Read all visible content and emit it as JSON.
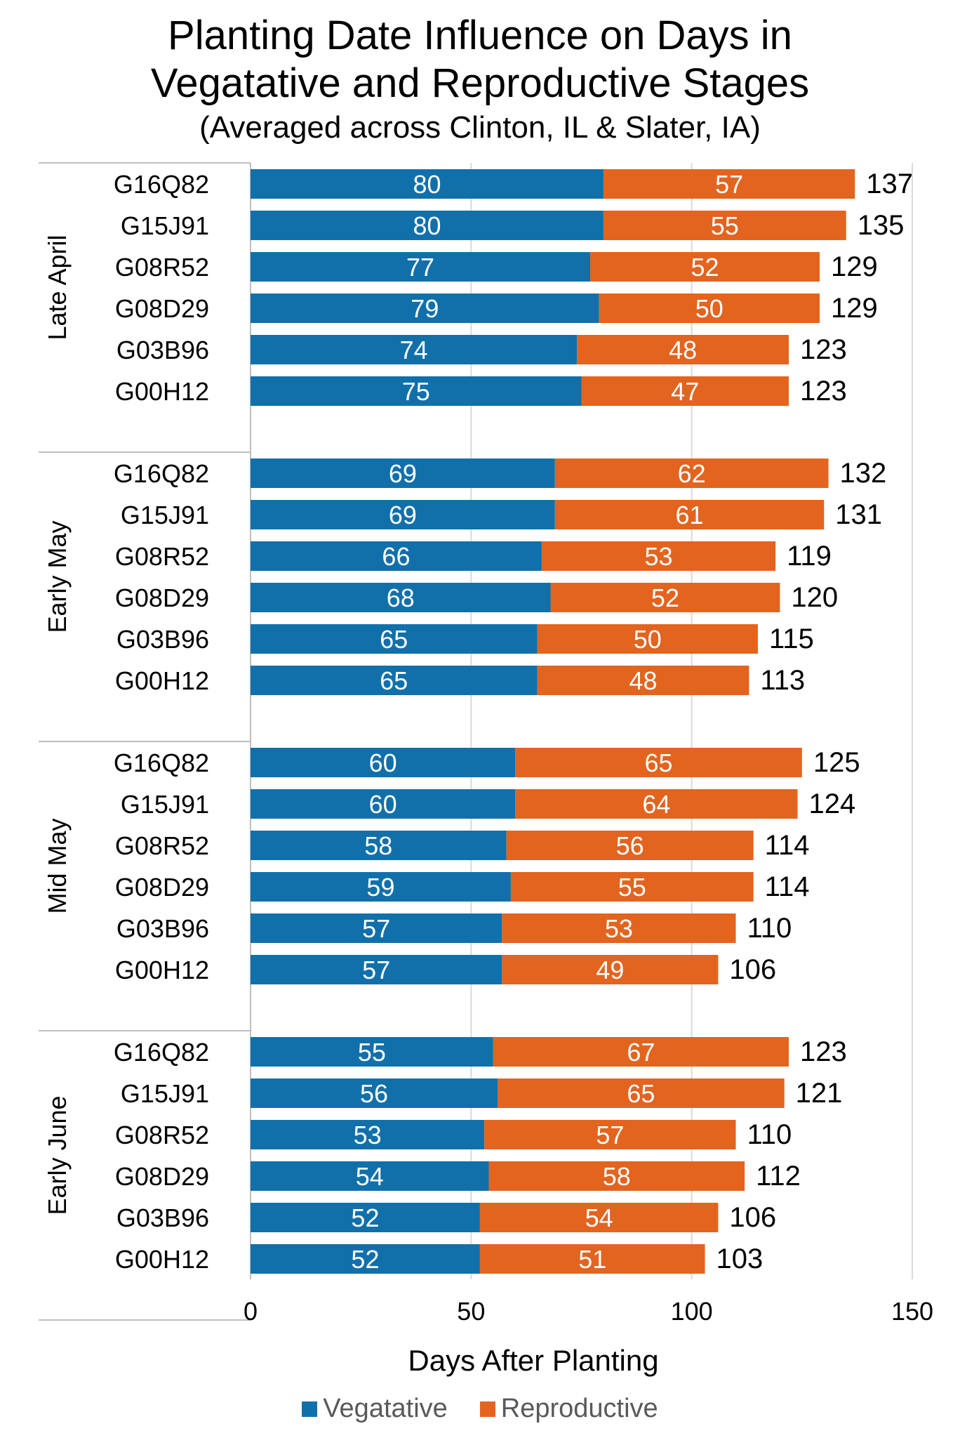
{
  "title_line1": "Planting Date Influence on Days in",
  "title_line2": "Vegatative and Reproductive Stages",
  "subtitle": "(Averaged across Clinton, IL & Slater, IA)",
  "colors": {
    "vegetative": "#1170aa",
    "reproductive": "#e2641f",
    "grid": "#d9d9d9",
    "axis_line": "#bfbfbf"
  },
  "chart_data": {
    "type": "bar",
    "orientation": "horizontal",
    "stacked": true,
    "xlabel": "Days After Planting",
    "xlim": [
      0,
      150
    ],
    "xticks": [
      0,
      50,
      100,
      150
    ],
    "grid": true,
    "legend_position": "bottom",
    "series_names": [
      "Vegatative",
      "Reproductive"
    ],
    "groups": [
      {
        "name": "Late April",
        "rows": [
          {
            "label": "G16Q82",
            "vegetative": 80,
            "reproductive": 57,
            "total": 137
          },
          {
            "label": "G15J91",
            "vegetative": 80,
            "reproductive": 55,
            "total": 135
          },
          {
            "label": "G08R52",
            "vegetative": 77,
            "reproductive": 52,
            "total": 129
          },
          {
            "label": "G08D29",
            "vegetative": 79,
            "reproductive": 50,
            "total": 129
          },
          {
            "label": "G03B96",
            "vegetative": 74,
            "reproductive": 48,
            "total": 123
          },
          {
            "label": "G00H12",
            "vegetative": 75,
            "reproductive": 47,
            "total": 123
          }
        ]
      },
      {
        "name": "Early May",
        "rows": [
          {
            "label": "G16Q82",
            "vegetative": 69,
            "reproductive": 62,
            "total": 132
          },
          {
            "label": "G15J91",
            "vegetative": 69,
            "reproductive": 61,
            "total": 131
          },
          {
            "label": "G08R52",
            "vegetative": 66,
            "reproductive": 53,
            "total": 119
          },
          {
            "label": "G08D29",
            "vegetative": 68,
            "reproductive": 52,
            "total": 120
          },
          {
            "label": "G03B96",
            "vegetative": 65,
            "reproductive": 50,
            "total": 115
          },
          {
            "label": "G00H12",
            "vegetative": 65,
            "reproductive": 48,
            "total": 113
          }
        ]
      },
      {
        "name": "Mid May",
        "rows": [
          {
            "label": "G16Q82",
            "vegetative": 60,
            "reproductive": 65,
            "total": 125
          },
          {
            "label": "G15J91",
            "vegetative": 60,
            "reproductive": 64,
            "total": 124
          },
          {
            "label": "G08R52",
            "vegetative": 58,
            "reproductive": 56,
            "total": 114
          },
          {
            "label": "G08D29",
            "vegetative": 59,
            "reproductive": 55,
            "total": 114
          },
          {
            "label": "G03B96",
            "vegetative": 57,
            "reproductive": 53,
            "total": 110
          },
          {
            "label": "G00H12",
            "vegetative": 57,
            "reproductive": 49,
            "total": 106
          }
        ]
      },
      {
        "name": "Early June",
        "rows": [
          {
            "label": "G16Q82",
            "vegetative": 55,
            "reproductive": 67,
            "total": 123
          },
          {
            "label": "G15J91",
            "vegetative": 56,
            "reproductive": 65,
            "total": 121
          },
          {
            "label": "G08R52",
            "vegetative": 53,
            "reproductive": 57,
            "total": 110
          },
          {
            "label": "G08D29",
            "vegetative": 54,
            "reproductive": 58,
            "total": 112
          },
          {
            "label": "G03B96",
            "vegetative": 52,
            "reproductive": 54,
            "total": 106
          },
          {
            "label": "G00H12",
            "vegetative": 52,
            "reproductive": 51,
            "total": 103
          }
        ]
      }
    ]
  }
}
